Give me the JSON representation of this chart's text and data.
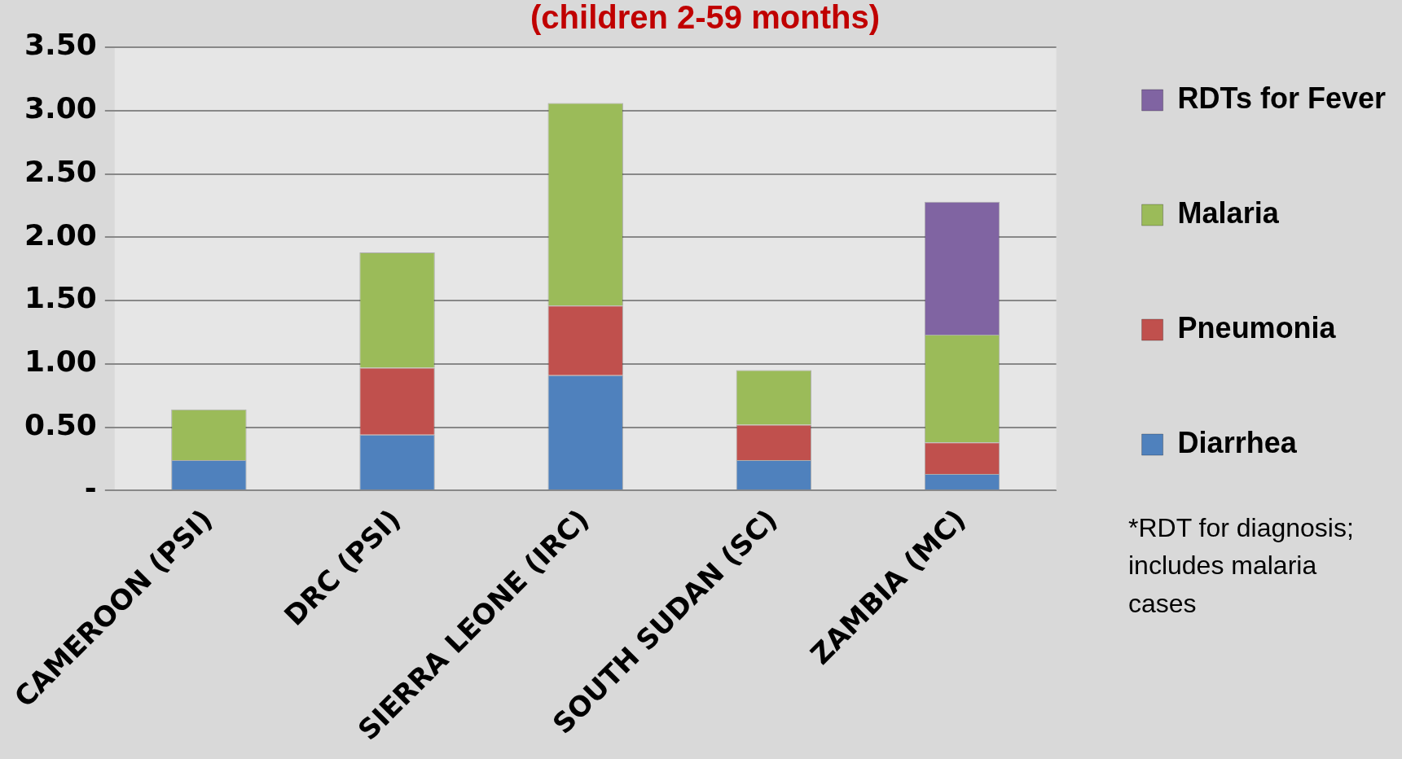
{
  "chart_data": {
    "type": "bar",
    "title": "(children 2-59 months)",
    "categories": [
      "CAMEROON (PSI)",
      "DRC (PSI)",
      "SIERRA LEONE (IRC)",
      "SOUTH SUDAN (SC)",
      "ZAMBIA (MC)"
    ],
    "series": [
      {
        "name": "Diarrhea",
        "color": "#4f81bd",
        "values": [
          0.24,
          0.44,
          0.91,
          0.24,
          0.13
        ]
      },
      {
        "name": "Pneumonia",
        "color": "#c0504d",
        "values": [
          0,
          0.53,
          0.55,
          0.28,
          0.25
        ]
      },
      {
        "name": "Malaria",
        "color": "#9bbb59",
        "values": [
          0.4,
          0.91,
          1.6,
          0.43,
          0.85
        ]
      },
      {
        "name": "RDTs for Fever",
        "color": "#8064a2",
        "values": [
          0,
          0,
          0,
          0,
          1.05
        ]
      }
    ],
    "stacked": true,
    "ylim": [
      0,
      3.5
    ],
    "yticks": [
      {
        "value": 0,
        "label": "-"
      },
      {
        "value": 0.5,
        "label": "0.50"
      },
      {
        "value": 1,
        "label": "1.00"
      },
      {
        "value": 1.5,
        "label": "1.50"
      },
      {
        "value": 2,
        "label": "2.00"
      },
      {
        "value": 2.5,
        "label": "2.50"
      },
      {
        "value": 3,
        "label": "3.00"
      },
      {
        "value": 3.5,
        "label": "3.50"
      }
    ],
    "grid": "y",
    "legend": "right",
    "annotations": [
      "*RDT for diagnosis; includes malaria cases"
    ]
  }
}
